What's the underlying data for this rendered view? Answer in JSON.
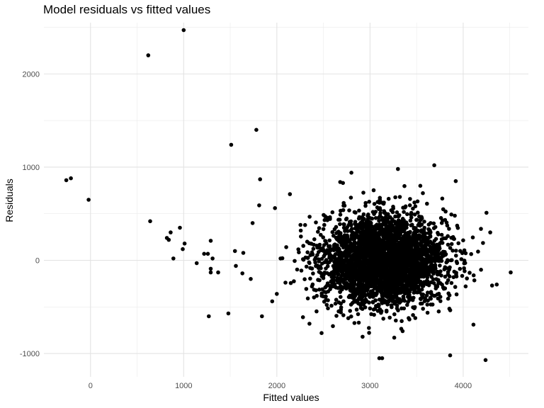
{
  "chart_data": {
    "type": "scatter",
    "title": "Model residuals vs fitted values",
    "xlabel": "Fitted values",
    "ylabel": "Residuals",
    "xlim": [
      -500,
      4700
    ],
    "ylim": [
      -1250,
      2550
    ],
    "x_ticks": [
      0,
      1000,
      2000,
      3000,
      4000
    ],
    "x_tick_labels": [
      "0",
      "1000",
      "2000",
      "3000",
      "4000"
    ],
    "y_ticks": [
      -1000,
      0,
      1000,
      2000
    ],
    "y_tick_labels": [
      "-1000",
      "0",
      "1000",
      "2000"
    ],
    "grid": true,
    "point_color": "#000000",
    "outlier_points": [
      {
        "x": -260,
        "y": 860
      },
      {
        "x": -210,
        "y": 880
      },
      {
        "x": -20,
        "y": 650
      },
      {
        "x": 620,
        "y": 2200
      },
      {
        "x": 1000,
        "y": 2470
      },
      {
        "x": 640,
        "y": 420
      },
      {
        "x": 960,
        "y": 350
      },
      {
        "x": 860,
        "y": 300
      },
      {
        "x": 820,
        "y": 240
      },
      {
        "x": 840,
        "y": 220
      },
      {
        "x": 1010,
        "y": 180
      },
      {
        "x": 990,
        "y": 120
      },
      {
        "x": 890,
        "y": 20
      },
      {
        "x": 1140,
        "y": -30
      },
      {
        "x": 1260,
        "y": 70
      },
      {
        "x": 1220,
        "y": 70
      },
      {
        "x": 1290,
        "y": 210
      },
      {
        "x": 1310,
        "y": 20
      },
      {
        "x": 1290,
        "y": -90
      },
      {
        "x": 1370,
        "y": -130
      },
      {
        "x": 1290,
        "y": -130
      },
      {
        "x": 1270,
        "y": -600
      },
      {
        "x": 1480,
        "y": -570
      },
      {
        "x": 1510,
        "y": 1240
      },
      {
        "x": 1780,
        "y": 1400
      },
      {
        "x": 1820,
        "y": 870
      },
      {
        "x": 1810,
        "y": 590
      },
      {
        "x": 1980,
        "y": 560
      },
      {
        "x": 1740,
        "y": 400
      },
      {
        "x": 1550,
        "y": 100
      },
      {
        "x": 1640,
        "y": 80
      },
      {
        "x": 1560,
        "y": -60
      },
      {
        "x": 1630,
        "y": -140
      },
      {
        "x": 1720,
        "y": -200
      },
      {
        "x": 1840,
        "y": -600
      },
      {
        "x": 2140,
        "y": 710
      },
      {
        "x": 2040,
        "y": 20
      },
      {
        "x": 1950,
        "y": -440
      },
      {
        "x": 2000,
        "y": -360
      },
      {
        "x": 2280,
        "y": -610
      },
      {
        "x": 2350,
        "y": -680
      },
      {
        "x": 2480,
        "y": -780
      },
      {
        "x": 2800,
        "y": 940
      },
      {
        "x": 2710,
        "y": 830
      },
      {
        "x": 3300,
        "y": 980
      },
      {
        "x": 3690,
        "y": 1020
      },
      {
        "x": 3920,
        "y": 850
      },
      {
        "x": 4250,
        "y": 510
      },
      {
        "x": 4290,
        "y": 300
      },
      {
        "x": 4510,
        "y": -130
      },
      {
        "x": 4360,
        "y": -260
      },
      {
        "x": 4310,
        "y": -270
      },
      {
        "x": 4110,
        "y": -690
      },
      {
        "x": 3100,
        "y": -1050
      },
      {
        "x": 3130,
        "y": -1050
      },
      {
        "x": 3860,
        "y": -1020
      },
      {
        "x": 4240,
        "y": -1070
      },
      {
        "x": 2920,
        "y": -820
      },
      {
        "x": 3260,
        "y": -830
      },
      {
        "x": 3350,
        "y": -760
      },
      {
        "x": 2680,
        "y": 840
      },
      {
        "x": 3540,
        "y": 800
      }
    ],
    "main_cluster": {
      "n": 3400,
      "center_x": 3150,
      "spread_x": 330,
      "center_y": 0,
      "spread_y": 240,
      "x_range": [
        2000,
        4300
      ],
      "y_range": [
        -780,
        960
      ]
    }
  }
}
